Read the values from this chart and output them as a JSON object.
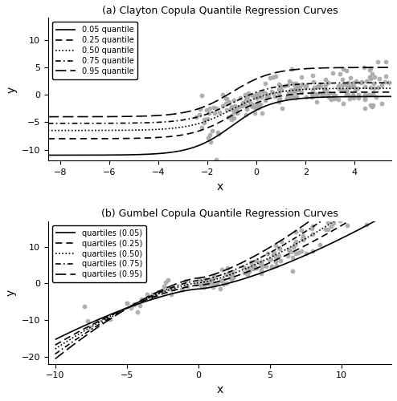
{
  "title_a": "(a) Clayton Copula Quantile Regression Curves",
  "title_b": "(b) Gumbel Copula Quantile Regression Curves",
  "xlabel": "x",
  "ylabel_a": "y",
  "ylabel_b": "y",
  "panel_a": {
    "xlim": [
      -8.5,
      5.5
    ],
    "ylim": [
      -12,
      14
    ],
    "yticks": [
      -10,
      -5,
      0,
      5,
      10
    ],
    "xticks": [
      -8,
      -6,
      -4,
      -2,
      0,
      2,
      4
    ],
    "quantiles": [
      0.05,
      0.25,
      0.5,
      0.75,
      0.95
    ],
    "legend_labels": [
      "0.05 quantile",
      "0.25 quantile",
      "0.50 quantile",
      "0.75 quantile",
      "0.95 quantile"
    ],
    "linestyles": [
      "solid",
      "dashed",
      "dotted",
      "dashdot",
      "loosely dashed"
    ]
  },
  "panel_b": {
    "xlim": [
      -10.5,
      13.5
    ],
    "ylim": [
      -22,
      17
    ],
    "yticks": [
      -20,
      -10,
      0,
      10
    ],
    "xticks": [
      -10,
      -5,
      0,
      5,
      10
    ],
    "quantiles": [
      0.05,
      0.25,
      0.5,
      0.75,
      0.95
    ],
    "legend_labels": [
      "quartiles (0.05)",
      "quartiles (0.25)",
      "quartiles (0.50)",
      "quartiles (0.75)",
      "quartiles (0.95)"
    ],
    "linestyles": [
      "solid",
      "dashed",
      "dotted",
      "dashdot",
      "loosely dashed"
    ]
  },
  "line_color": "#000000",
  "scatter_color": "#aaaaaa",
  "scatter_size": 10,
  "background_color": "#ffffff",
  "seed_a": 42,
  "seed_b": 123,
  "n_points_a": 150,
  "n_points_b": 150
}
